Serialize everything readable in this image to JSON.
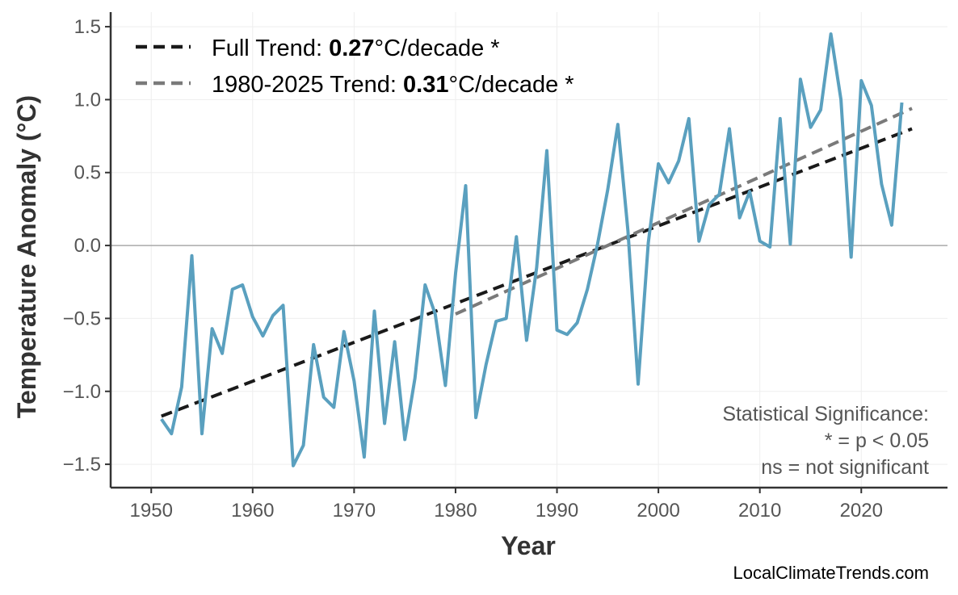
{
  "colors": {
    "series": "#5aa0bf",
    "full_trend": "#1a1a1a",
    "recent_trend": "#7a7a7a",
    "zero_line": "#aaaaaa",
    "grid": "#eeeeee",
    "axis": "#333333"
  },
  "chart_data": {
    "type": "line",
    "xlabel": "Year",
    "ylabel": "Temperature Anomaly (°C)",
    "xlim": [
      1946,
      2028.5
    ],
    "ylim": [
      -1.66,
      1.6
    ],
    "x_ticks": [
      1950,
      1960,
      1970,
      1980,
      1990,
      2000,
      2010,
      2020
    ],
    "y_ticks": [
      -1.5,
      -1.0,
      -0.5,
      0.0,
      0.5,
      1.0,
      1.5
    ],
    "y_tick_labels": [
      "−1.5",
      "−1.0",
      "−0.5",
      "0.0",
      "0.5",
      "1.0",
      "1.5"
    ],
    "grid": true,
    "series": [
      {
        "years": [
          1951,
          1952,
          1953,
          1954,
          1955,
          1956,
          1957,
          1958,
          1959,
          1960,
          1961,
          1962,
          1963,
          1964,
          1965,
          1966,
          1967,
          1968,
          1969,
          1970,
          1971,
          1972,
          1973,
          1974,
          1975,
          1976,
          1977,
          1978,
          1979,
          1980,
          1981,
          1982,
          1983,
          1984,
          1985,
          1986,
          1987,
          1988,
          1989,
          1990,
          1991,
          1992,
          1993,
          1994,
          1995,
          1996,
          1997,
          1998,
          1999,
          2000,
          2001,
          2002,
          2003,
          2004,
          2005,
          2006,
          2007,
          2008,
          2009,
          2010,
          2011,
          2012,
          2013,
          2014,
          2015,
          2016,
          2017,
          2018,
          2019,
          2020,
          2021,
          2022,
          2023,
          2024
        ],
        "values": [
          -1.19,
          -1.29,
          -0.97,
          -0.07,
          -1.29,
          -0.57,
          -0.74,
          -0.3,
          -0.27,
          -0.49,
          -0.62,
          -0.48,
          -0.41,
          -1.51,
          -1.37,
          -0.68,
          -1.04,
          -1.11,
          -0.59,
          -0.93,
          -1.45,
          -0.45,
          -1.22,
          -0.66,
          -1.33,
          -0.91,
          -0.27,
          -0.47,
          -0.96,
          -0.19,
          0.41,
          -1.18,
          -0.82,
          -0.52,
          -0.5,
          0.06,
          -0.65,
          -0.15,
          0.65,
          -0.58,
          -0.61,
          -0.53,
          -0.3,
          0.01,
          0.38,
          0.83,
          0.1,
          -0.95,
          0.02,
          0.56,
          0.43,
          0.58,
          0.87,
          0.03,
          0.28,
          0.35,
          0.8,
          0.19,
          0.37,
          0.03,
          -0.01,
          0.87,
          0.01,
          1.14,
          0.81,
          0.93,
          1.45,
          1.0,
          -0.08,
          1.13,
          0.96,
          0.42,
          0.14,
          0.98
        ]
      }
    ],
    "trends": [
      {
        "x": [
          1951,
          2025
        ],
        "y": [
          -1.17,
          0.8
        ]
      },
      {
        "x": [
          1980,
          2025
        ],
        "y": [
          -0.47,
          0.94
        ]
      }
    ],
    "legend": {
      "placement": "top-left",
      "items": [
        {
          "prefix": "Full Trend: ",
          "value": "0.27",
          "suffix": "°C/decade *"
        },
        {
          "prefix": "1980-2025 Trend: ",
          "value": "0.31",
          "suffix": "°C/decade *"
        }
      ]
    },
    "annotation": {
      "placement": "bottom-right",
      "lines": [
        "Statistical Significance:",
        "* = p < 0.05",
        "ns = not significant"
      ]
    }
  },
  "source": "LocalClimateTrends.com"
}
